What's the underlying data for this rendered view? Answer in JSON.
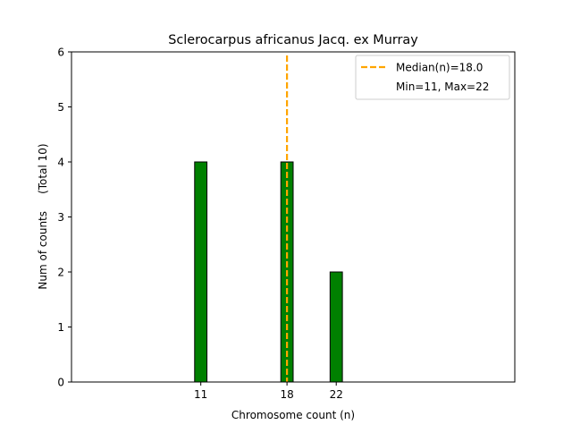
{
  "chart_data": {
    "type": "bar",
    "title": "Sclerocarpus africanus Jacq. ex Murray",
    "xlabel": "Chromosome count (n)",
    "ylabel": "Num of counts     (Total 10)",
    "xlim": [
      0.5,
      36.5
    ],
    "ylim": [
      0,
      6
    ],
    "xticks": [
      11,
      18,
      22
    ],
    "yticks": [
      0,
      1,
      2,
      3,
      4,
      5,
      6
    ],
    "bar_width": 1,
    "bars": [
      {
        "x": 11,
        "value": 4
      },
      {
        "x": 18,
        "value": 4
      },
      {
        "x": 22,
        "value": 2
      }
    ],
    "baseline_range": [
      11,
      25
    ],
    "median": 18.0,
    "colors": {
      "bar": "#008000",
      "bar_edge": "#000000",
      "median": "#FFA500"
    },
    "legend": {
      "placement": "top-right",
      "entries": [
        "Median(n)=18.0",
        "Min=11, Max=22"
      ]
    },
    "grid": false
  }
}
